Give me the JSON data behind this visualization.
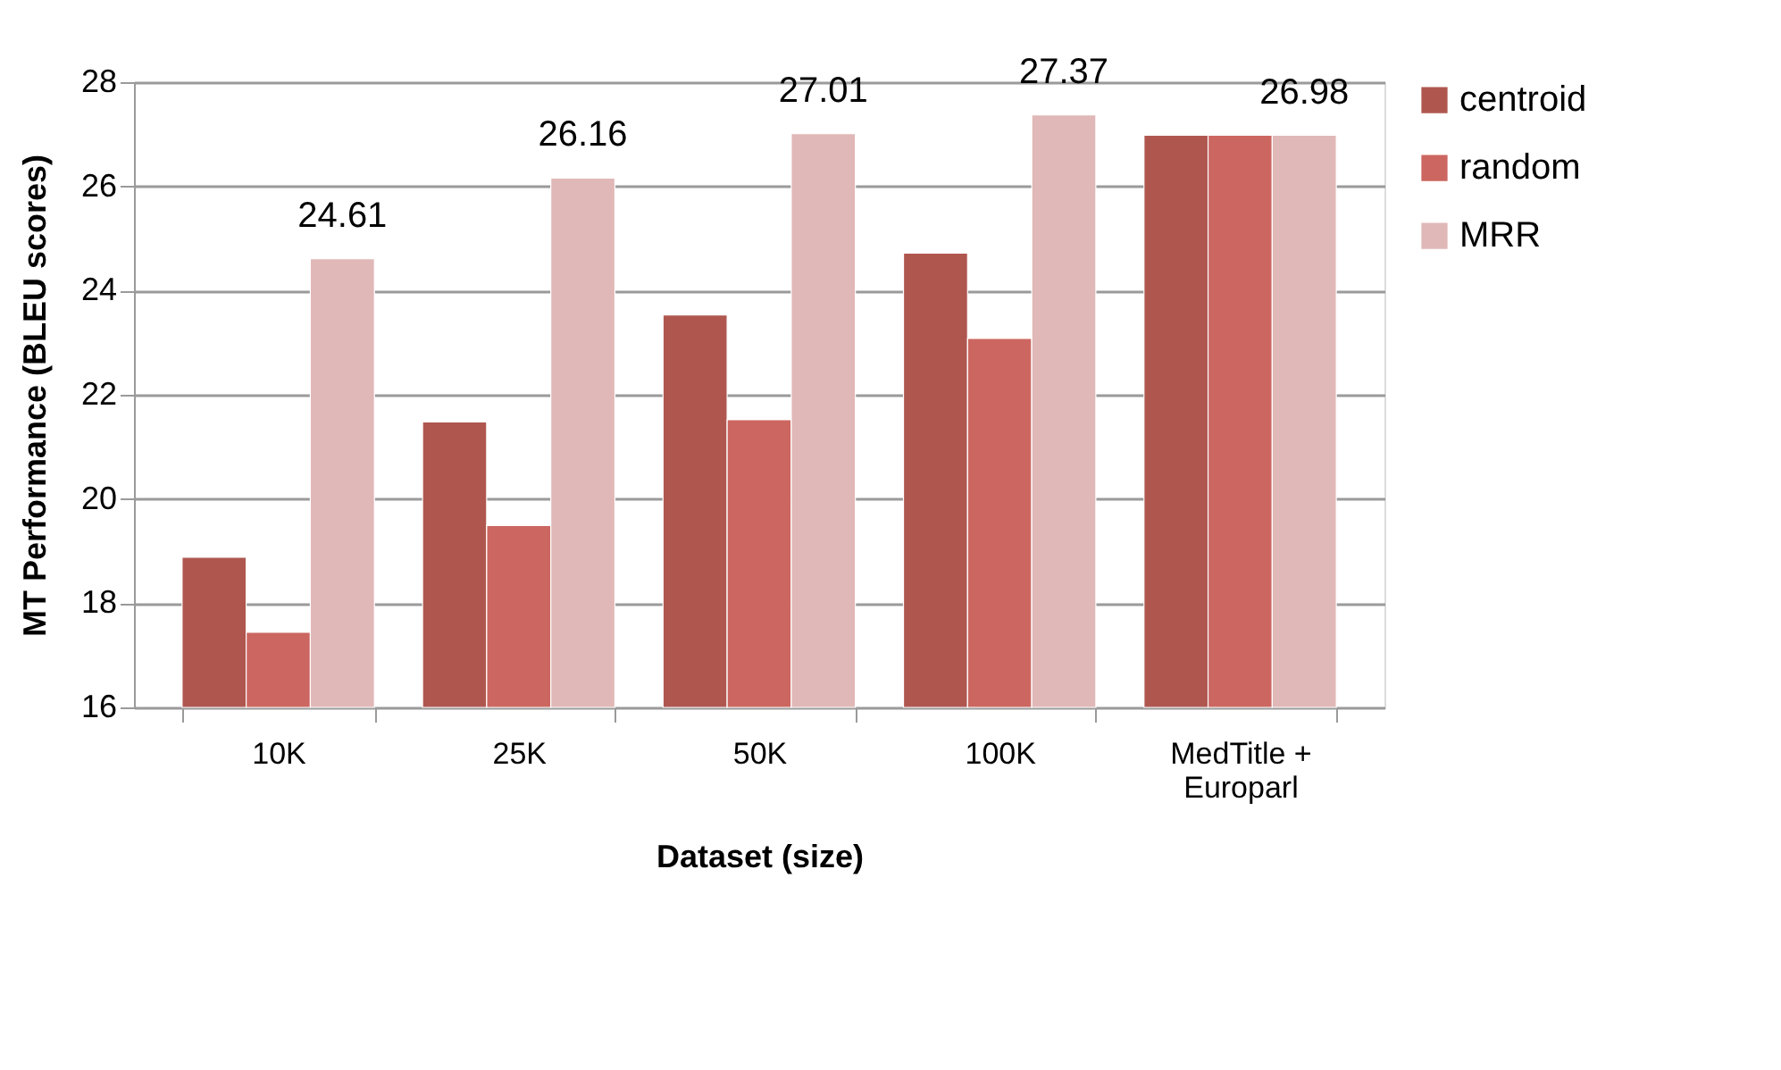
{
  "chart_data": {
    "type": "bar",
    "xlabel": "Dataset (size)",
    "ylabel": "MT Performance (BLEU scores)",
    "categories": [
      "10K",
      "25K",
      "50K",
      "100K",
      "MedTitle + Europarl"
    ],
    "series": [
      {
        "name": "centroid",
        "color": "#af574f",
        "values": [
          18.88,
          21.48,
          23.53,
          24.72,
          26.98
        ]
      },
      {
        "name": "random",
        "color": "#cc6660",
        "values": [
          17.44,
          19.49,
          21.52,
          23.08,
          26.98
        ]
      },
      {
        "name": "MRR",
        "color": "#e0b8b7",
        "values": [
          24.61,
          26.16,
          27.01,
          27.37,
          26.98
        ],
        "value_labels": [
          "24.61",
          "26.16",
          "27.01",
          "27.37",
          "26.98"
        ]
      }
    ],
    "ylim": [
      16,
      28
    ],
    "yticks": [
      16,
      18,
      20,
      22,
      24,
      26,
      28
    ],
    "grid": "y",
    "legend": "right"
  }
}
